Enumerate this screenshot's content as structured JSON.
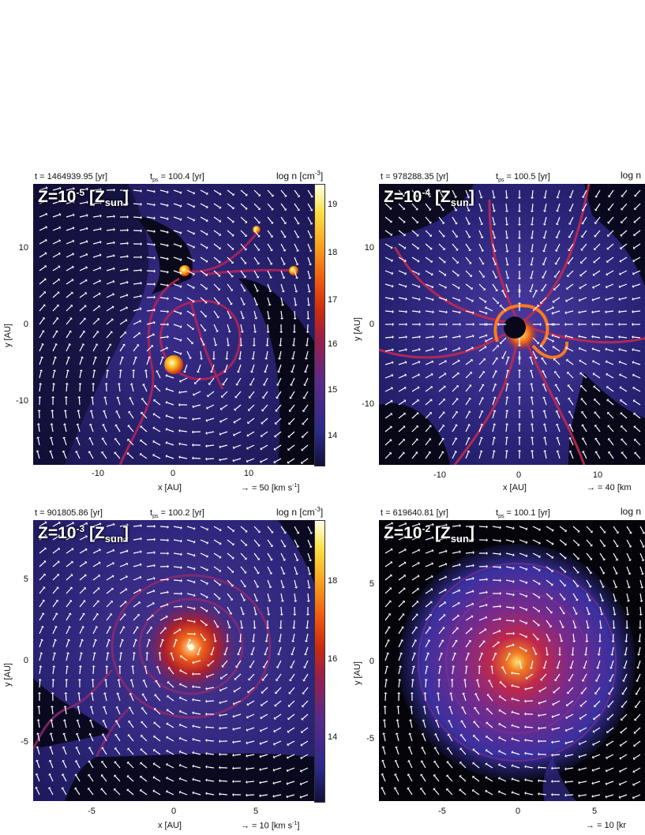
{
  "panels": [
    {
      "time": "t = 1464939.95 [yr]",
      "tps_label": "t",
      "tps_sub": "ps",
      "tps_value": " = 100.4 [yr]",
      "cbar_title": "log n [cm",
      "cbar_title_sup": "-3",
      "cbar_title_end": "]",
      "z_prefix": "Z=10",
      "z_exp": "-5",
      "z_mid": " [Z",
      "z_sub": "sun",
      "z_end": "]",
      "yticks": [
        "10",
        "0",
        "-10"
      ],
      "xticks": [
        "-10",
        "0",
        "10"
      ],
      "ylabel": "y [AU]",
      "xlabel": "x [AU]",
      "vel_scale": "→ = 50 [km s",
      "vel_sup": "-1",
      "vel_end": "]",
      "cbar_ticks": [
        "19",
        "18",
        "17",
        "16",
        "15",
        "14"
      ]
    },
    {
      "time": "t = 978288.35 [yr]",
      "tps_label": "t",
      "tps_sub": "ps",
      "tps_value": " = 100.5 [yr]",
      "cbar_title": "log n",
      "z_prefix": "Z=10",
      "z_exp": "-4",
      "z_mid": " [Z",
      "z_sub": "sun",
      "z_end": "]",
      "yticks": [
        "10",
        "0",
        "-10"
      ],
      "xticks": [
        "-10",
        "0",
        "10"
      ],
      "ylabel": "y [AU]",
      "xlabel": "x [AU]",
      "vel_scale": "→ = 40 [km"
    },
    {
      "time": "t = 901805.86 [yr]",
      "tps_label": "t",
      "tps_sub": "ps",
      "tps_value": " = 100.2 [yr]",
      "cbar_title": "log n [cm",
      "cbar_title_sup": "-3",
      "cbar_title_end": "]",
      "z_prefix": "Z=10",
      "z_exp": "-3",
      "z_mid": " [Z",
      "z_sub": "sun",
      "z_end": "]",
      "yticks": [
        "5",
        "0",
        "-5"
      ],
      "xticks": [
        "-5",
        "0",
        "5"
      ],
      "ylabel": "y [AU]",
      "xlabel": "x [AU]",
      "vel_scale": "→ = 10 [km s",
      "vel_sup": "-1",
      "vel_end": "]",
      "cbar_ticks": [
        "18",
        "16",
        "14"
      ]
    },
    {
      "time": "t = 619640.81 [yr]",
      "tps_label": "t",
      "tps_sub": "ps",
      "tps_value": " = 100.1 [yr]",
      "cbar_title": "log n",
      "z_prefix": "Z=10",
      "z_exp": "-2",
      "z_mid": " [Z",
      "z_sub": "sun",
      "z_end": "]",
      "yticks": [
        "5",
        "0",
        "-5"
      ],
      "xticks": [
        "-5",
        "0",
        "5"
      ],
      "ylabel": "y [AU]",
      "xlabel": "",
      "vel_scale": "→ = 10 [kr"
    }
  ]
}
